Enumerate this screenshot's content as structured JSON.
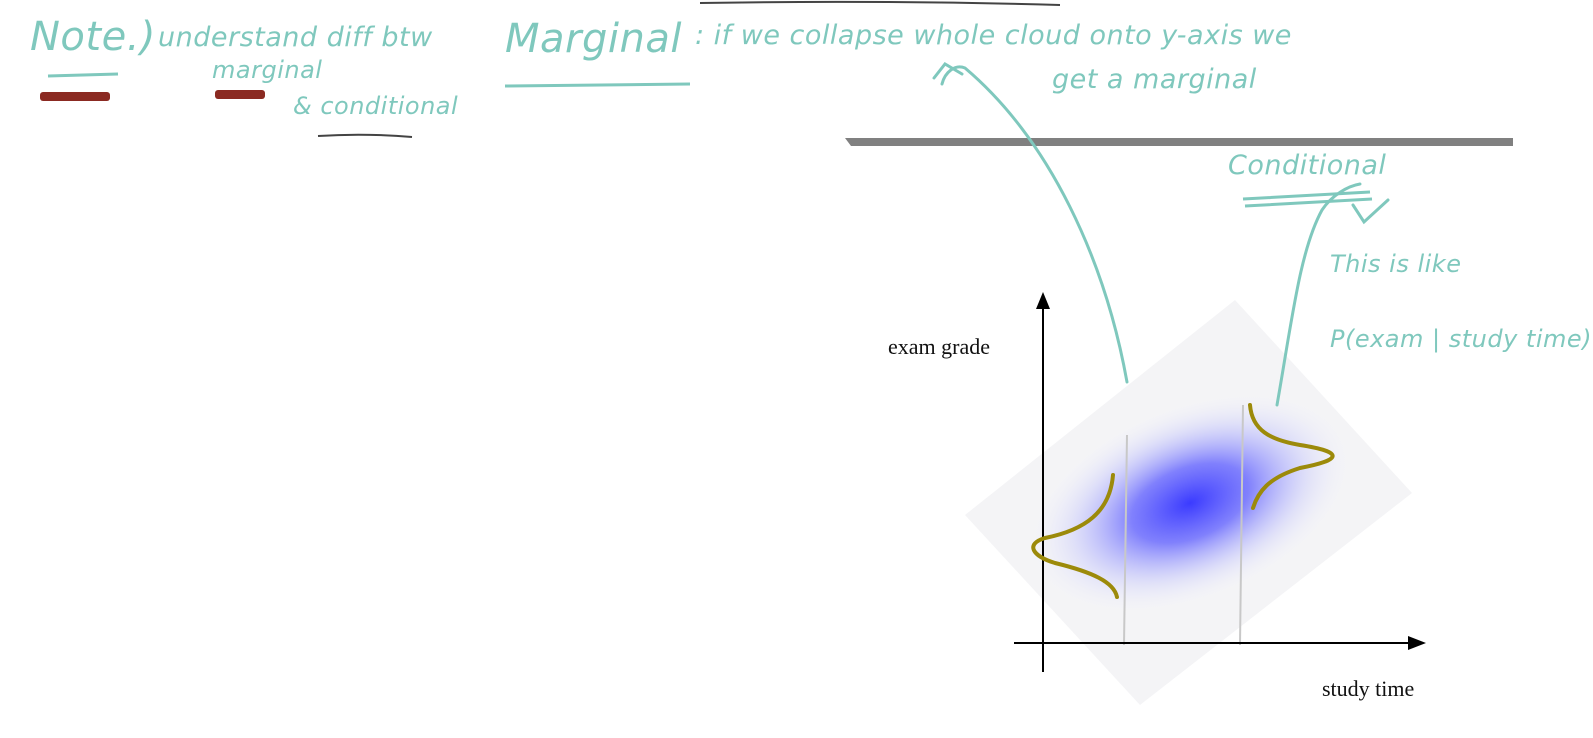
{
  "diagram": {
    "y_axis_label": "exam grade",
    "x_axis_label": "study time"
  },
  "annotations": {
    "note_label": "Note.)",
    "note_text": "understand diff btw",
    "note_line2": "marginal",
    "note_line3": "& conditional",
    "marginal_title": "Marginal",
    "marginal_text": ": if we collapse whole cloud onto y-axis we",
    "marginal_line2": "get a marginal",
    "conditional_title": "Conditional",
    "conditional_line1": "This is like",
    "conditional_line2": "P(exam | study time)"
  },
  "colors": {
    "ink": "#7fc8bd",
    "cloud": "#3b3bff",
    "curve": "#9c8a0a",
    "bar": "#808080"
  }
}
